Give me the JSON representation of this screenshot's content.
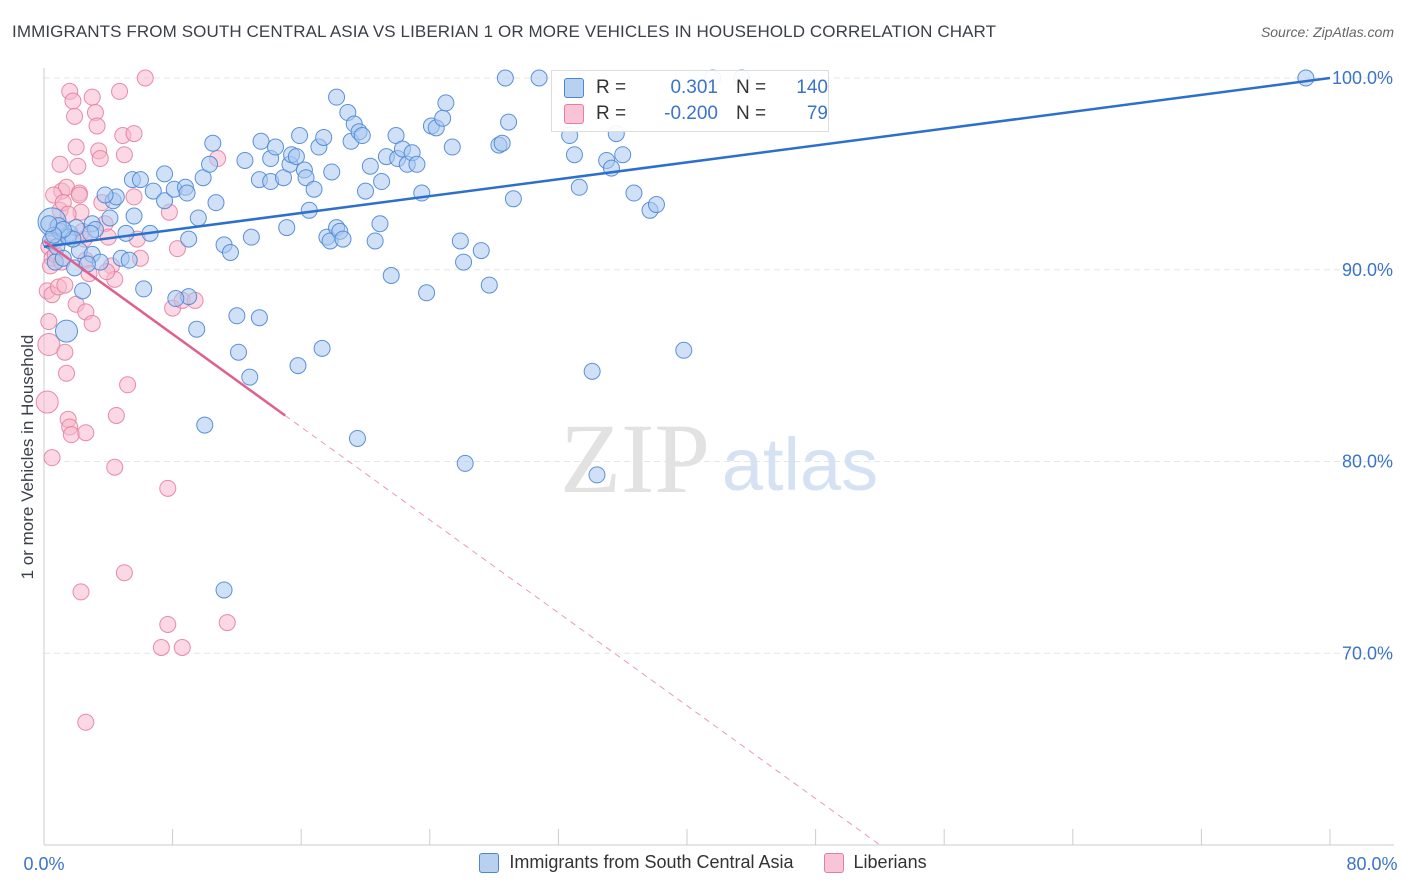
{
  "title": "IMMIGRANTS FROM SOUTH CENTRAL ASIA VS LIBERIAN 1 OR MORE VEHICLES IN HOUSEHOLD CORRELATION CHART",
  "source": "Source: ZipAtlas.com",
  "watermark": {
    "zip": "ZIP",
    "atlas": "atlas"
  },
  "colors": {
    "blue_fill": "#a9c8f0",
    "blue_stroke": "#4a86d6",
    "blue_line": "#2c6fcd",
    "pink_fill": "#f7b8cc",
    "pink_stroke": "#e57fa0",
    "pink_line": "#e0608d",
    "axis_text": "#3a74c9",
    "grid": "#e6e6e6"
  },
  "stats_legend": [
    {
      "r_label": "R =",
      "r_value": "0.301",
      "n_label": "N =",
      "n_value": "140"
    },
    {
      "r_label": "R =",
      "r_value": "-0.200",
      "n_label": "N =",
      "n_value": "79"
    }
  ],
  "chart_data": {
    "type": "scatter",
    "title": "IMMIGRANTS FROM SOUTH CENTRAL ASIA VS LIBERIAN 1 OR MORE VEHICLES IN HOUSEHOLD CORRELATION CHART",
    "xlabel": "",
    "ylabel": "1 or more Vehicles in Household",
    "xlim": [
      0,
      80
    ],
    "ylim": [
      60,
      100
    ],
    "x_tick_labels": [
      "0.0%",
      "80.0%"
    ],
    "y_ticks": [
      70,
      80,
      90,
      100
    ],
    "y_tick_labels": [
      "70.0%",
      "80.0%",
      "90.0%",
      "100.0%"
    ],
    "grid": true,
    "legend_position": "bottom",
    "series": [
      {
        "name": "Immigrants from South Central Asia",
        "color": "#4a86d6",
        "trend": {
          "x": [
            0,
            80
          ],
          "y": [
            91.2,
            100.0
          ]
        },
        "points": [
          [
            0.5,
            92.5
          ],
          [
            0.4,
            91.5
          ],
          [
            0.8,
            91.2
          ],
          [
            1.0,
            92.0
          ],
          [
            0.7,
            90.4
          ],
          [
            1.2,
            90.6
          ],
          [
            1.6,
            91.9
          ],
          [
            1.9,
            90.1
          ],
          [
            2.2,
            91.0
          ],
          [
            2.4,
            88.9
          ],
          [
            2.0,
            92.2
          ],
          [
            1.5,
            91.7
          ],
          [
            0.9,
            92.3
          ],
          [
            1.4,
            86.8
          ],
          [
            3.0,
            92.4
          ],
          [
            3.2,
            92.1
          ],
          [
            3.0,
            90.8
          ],
          [
            4.3,
            93.6
          ],
          [
            4.5,
            93.8
          ],
          [
            5.5,
            94.7
          ],
          [
            5.6,
            92.8
          ],
          [
            3.8,
            93.9
          ],
          [
            4.1,
            92.7
          ],
          [
            5.1,
            91.9
          ],
          [
            4.8,
            90.6
          ],
          [
            6.0,
            94.7
          ],
          [
            6.6,
            91.9
          ],
          [
            6.8,
            94.1
          ],
          [
            7.5,
            95.0
          ],
          [
            7.5,
            93.6
          ],
          [
            8.1,
            94.2
          ],
          [
            8.8,
            94.3
          ],
          [
            9.6,
            92.7
          ],
          [
            9.0,
            91.6
          ],
          [
            9.0,
            88.6
          ],
          [
            8.9,
            94.0
          ],
          [
            9.9,
            94.8
          ],
          [
            10.3,
            95.5
          ],
          [
            10.5,
            96.6
          ],
          [
            10.7,
            93.5
          ],
          [
            11.2,
            91.3
          ],
          [
            11.6,
            90.9
          ],
          [
            12.0,
            87.6
          ],
          [
            12.1,
            85.7
          ],
          [
            12.5,
            95.7
          ],
          [
            12.9,
            91.7
          ],
          [
            13.4,
            94.7
          ],
          [
            13.5,
            96.7
          ],
          [
            14.1,
            94.6
          ],
          [
            14.1,
            95.8
          ],
          [
            14.4,
            96.4
          ],
          [
            14.9,
            94.8
          ],
          [
            15.1,
            92.2
          ],
          [
            15.3,
            95.5
          ],
          [
            15.4,
            96.0
          ],
          [
            15.7,
            95.9
          ],
          [
            15.9,
            97.0
          ],
          [
            16.2,
            95.2
          ],
          [
            16.3,
            94.8
          ],
          [
            16.5,
            93.1
          ],
          [
            16.8,
            94.2
          ],
          [
            17.1,
            96.4
          ],
          [
            17.4,
            96.9
          ],
          [
            17.6,
            91.7
          ],
          [
            17.8,
            91.5
          ],
          [
            17.9,
            95.1
          ],
          [
            18.2,
            92.2
          ],
          [
            18.4,
            92.0
          ],
          [
            18.6,
            91.6
          ],
          [
            18.2,
            99.0
          ],
          [
            18.9,
            98.2
          ],
          [
            19.1,
            96.7
          ],
          [
            19.3,
            97.6
          ],
          [
            19.6,
            97.2
          ],
          [
            19.8,
            97.0
          ],
          [
            20.0,
            94.1
          ],
          [
            20.3,
            95.4
          ],
          [
            20.6,
            91.5
          ],
          [
            20.9,
            92.4
          ],
          [
            21.0,
            94.6
          ],
          [
            21.3,
            95.9
          ],
          [
            21.6,
            89.7
          ],
          [
            21.9,
            97.0
          ],
          [
            22.0,
            95.8
          ],
          [
            22.3,
            96.3
          ],
          [
            22.6,
            95.5
          ],
          [
            22.9,
            96.1
          ],
          [
            23.2,
            95.5
          ],
          [
            23.5,
            94.0
          ],
          [
            23.8,
            88.8
          ],
          [
            24.1,
            97.5
          ],
          [
            24.4,
            97.4
          ],
          [
            24.8,
            97.9
          ],
          [
            25.0,
            98.7
          ],
          [
            25.4,
            96.4
          ],
          [
            25.9,
            91.5
          ],
          [
            26.1,
            90.4
          ],
          [
            27.2,
            91.0
          ],
          [
            27.7,
            89.2
          ],
          [
            28.3,
            96.5
          ],
          [
            28.5,
            96.6
          ],
          [
            28.9,
            97.7
          ],
          [
            29.2,
            93.7
          ],
          [
            28.7,
            100.0
          ],
          [
            30.8,
            100.0
          ],
          [
            32.7,
            97.0
          ],
          [
            33.0,
            96.0
          ],
          [
            33.3,
            94.3
          ],
          [
            34.1,
            84.7
          ],
          [
            34.4,
            79.3
          ],
          [
            35.0,
            95.7
          ],
          [
            35.3,
            95.3
          ],
          [
            35.6,
            97.1
          ],
          [
            36.0,
            96.0
          ],
          [
            36.7,
            94.0
          ],
          [
            37.7,
            93.1
          ],
          [
            38.1,
            93.4
          ],
          [
            39.8,
            85.8
          ],
          [
            41.6,
            100.0
          ],
          [
            43.4,
            100.0
          ],
          [
            10.0,
            81.9
          ],
          [
            11.2,
            73.3
          ],
          [
            15.8,
            85.0
          ],
          [
            17.3,
            85.9
          ],
          [
            19.5,
            81.2
          ],
          [
            26.2,
            79.9
          ],
          [
            12.8,
            84.4
          ],
          [
            9.5,
            86.9
          ],
          [
            13.4,
            87.5
          ],
          [
            8.2,
            88.5
          ],
          [
            6.2,
            89.0
          ],
          [
            5.3,
            90.5
          ],
          [
            3.5,
            90.4
          ],
          [
            2.7,
            90.3
          ],
          [
            1.8,
            91.6
          ],
          [
            1.2,
            92.1
          ],
          [
            0.6,
            91.8
          ],
          [
            2.9,
            91.9
          ],
          [
            0.3,
            92.4
          ],
          [
            78.5,
            100.0
          ]
        ]
      },
      {
        "name": "Liberians",
        "color": "#e57fa0",
        "trend": {
          "x": [
            0,
            15
          ],
          "y": [
            91.5,
            82.4
          ]
        },
        "trend_extended": {
          "x": [
            15,
            52
          ],
          "y": [
            82.4,
            60.0
          ]
        },
        "points": [
          [
            0.3,
            91.2
          ],
          [
            0.5,
            90.6
          ],
          [
            0.4,
            90.2
          ],
          [
            0.2,
            88.9
          ],
          [
            0.5,
            88.7
          ],
          [
            0.3,
            86.1
          ],
          [
            0.2,
            83.1
          ],
          [
            0.5,
            80.2
          ],
          [
            0.7,
            90.8
          ],
          [
            0.8,
            92.2
          ],
          [
            1.0,
            93.1
          ],
          [
            1.0,
            95.5
          ],
          [
            1.1,
            94.1
          ],
          [
            0.9,
            89.1
          ],
          [
            1.3,
            85.7
          ],
          [
            1.4,
            84.6
          ],
          [
            1.5,
            82.2
          ],
          [
            1.6,
            81.8
          ],
          [
            1.7,
            81.4
          ],
          [
            1.4,
            94.3
          ],
          [
            1.6,
            99.3
          ],
          [
            1.8,
            98.8
          ],
          [
            1.9,
            98.0
          ],
          [
            2.0,
            96.4
          ],
          [
            2.1,
            95.4
          ],
          [
            2.2,
            94.0
          ],
          [
            2.3,
            93.0
          ],
          [
            2.4,
            92.0
          ],
          [
            2.5,
            91.6
          ],
          [
            2.6,
            90.5
          ],
          [
            2.0,
            88.2
          ],
          [
            2.6,
            87.8
          ],
          [
            3.0,
            87.2
          ],
          [
            2.6,
            81.5
          ],
          [
            3.0,
            99.0
          ],
          [
            3.2,
            98.2
          ],
          [
            3.3,
            97.5
          ],
          [
            3.4,
            96.2
          ],
          [
            3.5,
            95.8
          ],
          [
            3.6,
            93.5
          ],
          [
            3.8,
            92.4
          ],
          [
            4.0,
            91.7
          ],
          [
            4.2,
            90.2
          ],
          [
            4.4,
            89.5
          ],
          [
            4.5,
            82.4
          ],
          [
            4.4,
            79.7
          ],
          [
            4.7,
            99.3
          ],
          [
            4.9,
            97.0
          ],
          [
            5.0,
            96.0
          ],
          [
            5.2,
            84.0
          ],
          [
            5.6,
            97.1
          ],
          [
            5.6,
            93.8
          ],
          [
            5.8,
            91.6
          ],
          [
            6.0,
            90.6
          ],
          [
            6.3,
            100.0
          ],
          [
            7.7,
            78.6
          ],
          [
            7.8,
            93.0
          ],
          [
            8.0,
            88.0
          ],
          [
            8.3,
            91.1
          ],
          [
            8.6,
            88.4
          ],
          [
            9.4,
            88.4
          ],
          [
            10.8,
            95.8
          ],
          [
            5.0,
            74.2
          ],
          [
            2.3,
            73.2
          ],
          [
            7.7,
            71.5
          ],
          [
            7.3,
            70.3
          ],
          [
            8.6,
            70.3
          ],
          [
            11.4,
            71.6
          ],
          [
            2.6,
            66.4
          ],
          [
            0.6,
            93.9
          ],
          [
            1.2,
            93.5
          ],
          [
            1.5,
            92.9
          ],
          [
            0.3,
            87.3
          ],
          [
            2.8,
            89.8
          ],
          [
            1.1,
            90.4
          ],
          [
            0.7,
            91.5
          ],
          [
            3.9,
            89.9
          ],
          [
            1.3,
            89.2
          ],
          [
            2.2,
            93.9
          ]
        ]
      }
    ]
  }
}
